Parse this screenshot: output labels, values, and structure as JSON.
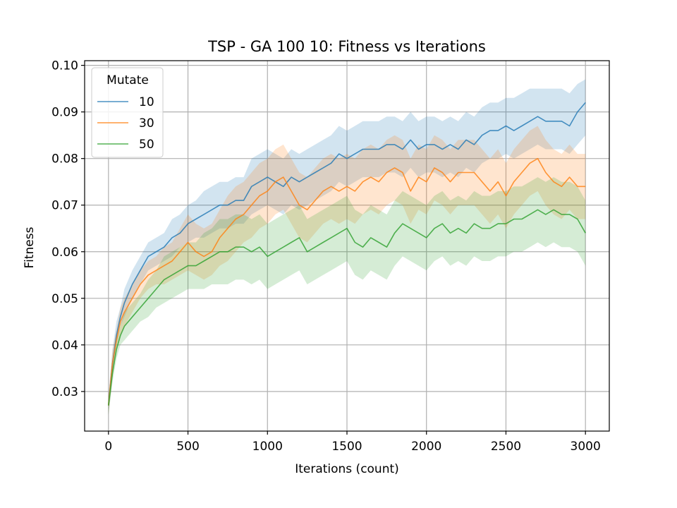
{
  "chart_data": {
    "type": "line",
    "title": "TSP - GA 100 10: Fitness vs Iterations",
    "xlabel": "Iterations (count)",
    "ylabel": "Fitness",
    "xlim": [
      -150,
      3150
    ],
    "ylim": [
      0.0215,
      0.101
    ],
    "xticks": [
      0,
      500,
      1000,
      1500,
      2000,
      2500,
      3000
    ],
    "yticks": [
      0.03,
      0.04,
      0.05,
      0.06,
      0.07,
      0.08,
      0.09,
      0.1
    ],
    "xtick_labels": [
      "0",
      "500",
      "1000",
      "1500",
      "2000",
      "2500",
      "3000"
    ],
    "ytick_labels": [
      "0.03",
      "0.04",
      "0.05",
      "0.06",
      "0.07",
      "0.08",
      "0.09",
      "0.10"
    ],
    "grid": true,
    "legend": {
      "title": "Mutate",
      "placement": "top-left"
    },
    "x": [
      0,
      25,
      50,
      75,
      100,
      150,
      200,
      250,
      300,
      350,
      400,
      450,
      500,
      550,
      600,
      650,
      700,
      750,
      800,
      850,
      900,
      950,
      1000,
      1050,
      1100,
      1150,
      1200,
      1250,
      1300,
      1350,
      1400,
      1450,
      1500,
      1550,
      1600,
      1650,
      1700,
      1750,
      1800,
      1850,
      1900,
      1950,
      2000,
      2050,
      2100,
      2150,
      2200,
      2250,
      2300,
      2350,
      2400,
      2450,
      2500,
      2550,
      2600,
      2650,
      2700,
      2750,
      2800,
      2850,
      2900,
      2950,
      3000
    ],
    "series": [
      {
        "name": "10",
        "color": "#1f77b4",
        "values": [
          0.027,
          0.036,
          0.042,
          0.046,
          0.049,
          0.053,
          0.056,
          0.059,
          0.06,
          0.061,
          0.063,
          0.064,
          0.066,
          0.067,
          0.068,
          0.069,
          0.07,
          0.07,
          0.071,
          0.071,
          0.074,
          0.075,
          0.076,
          0.075,
          0.074,
          0.076,
          0.075,
          0.076,
          0.077,
          0.078,
          0.079,
          0.081,
          0.08,
          0.081,
          0.082,
          0.082,
          0.082,
          0.083,
          0.083,
          0.082,
          0.084,
          0.082,
          0.083,
          0.083,
          0.082,
          0.083,
          0.082,
          0.084,
          0.083,
          0.085,
          0.086,
          0.086,
          0.087,
          0.086,
          0.087,
          0.088,
          0.089,
          0.088,
          0.088,
          0.088,
          0.087,
          0.09,
          0.092
        ],
        "lower": [
          0.025,
          0.033,
          0.04,
          0.044,
          0.046,
          0.05,
          0.053,
          0.056,
          0.057,
          0.058,
          0.059,
          0.061,
          0.062,
          0.063,
          0.063,
          0.064,
          0.065,
          0.065,
          0.066,
          0.066,
          0.068,
          0.069,
          0.07,
          0.069,
          0.068,
          0.07,
          0.069,
          0.07,
          0.071,
          0.072,
          0.073,
          0.075,
          0.074,
          0.075,
          0.076,
          0.076,
          0.076,
          0.077,
          0.077,
          0.076,
          0.078,
          0.076,
          0.077,
          0.077,
          0.076,
          0.077,
          0.076,
          0.078,
          0.077,
          0.079,
          0.08,
          0.08,
          0.081,
          0.08,
          0.081,
          0.082,
          0.083,
          0.082,
          0.082,
          0.082,
          0.081,
          0.083,
          0.085
        ],
        "upper": [
          0.029,
          0.039,
          0.045,
          0.048,
          0.052,
          0.056,
          0.059,
          0.062,
          0.063,
          0.064,
          0.067,
          0.068,
          0.07,
          0.071,
          0.073,
          0.074,
          0.075,
          0.075,
          0.076,
          0.076,
          0.08,
          0.081,
          0.082,
          0.081,
          0.08,
          0.082,
          0.081,
          0.082,
          0.083,
          0.084,
          0.085,
          0.087,
          0.086,
          0.087,
          0.088,
          0.088,
          0.088,
          0.089,
          0.089,
          0.088,
          0.09,
          0.088,
          0.089,
          0.089,
          0.088,
          0.089,
          0.088,
          0.09,
          0.089,
          0.091,
          0.092,
          0.092,
          0.093,
          0.093,
          0.094,
          0.095,
          0.095,
          0.095,
          0.095,
          0.095,
          0.094,
          0.096,
          0.097
        ]
      },
      {
        "name": "30",
        "color": "#ff7f0e",
        "values": [
          0.027,
          0.036,
          0.041,
          0.045,
          0.047,
          0.05,
          0.053,
          0.055,
          0.056,
          0.057,
          0.058,
          0.06,
          0.062,
          0.06,
          0.059,
          0.06,
          0.063,
          0.065,
          0.067,
          0.068,
          0.07,
          0.072,
          0.073,
          0.075,
          0.076,
          0.073,
          0.07,
          0.069,
          0.071,
          0.073,
          0.074,
          0.073,
          0.074,
          0.073,
          0.075,
          0.076,
          0.075,
          0.077,
          0.078,
          0.077,
          0.073,
          0.076,
          0.075,
          0.078,
          0.077,
          0.075,
          0.077,
          0.077,
          0.077,
          0.075,
          0.073,
          0.075,
          0.072,
          0.075,
          0.077,
          0.079,
          0.08,
          0.077,
          0.075,
          0.074,
          0.076,
          0.074,
          0.074
        ],
        "lower": [
          0.025,
          0.033,
          0.039,
          0.042,
          0.044,
          0.047,
          0.05,
          0.052,
          0.053,
          0.053,
          0.054,
          0.055,
          0.056,
          0.055,
          0.054,
          0.055,
          0.057,
          0.058,
          0.06,
          0.062,
          0.063,
          0.065,
          0.066,
          0.068,
          0.069,
          0.066,
          0.063,
          0.062,
          0.064,
          0.066,
          0.067,
          0.066,
          0.067,
          0.066,
          0.068,
          0.069,
          0.068,
          0.07,
          0.071,
          0.07,
          0.066,
          0.069,
          0.068,
          0.071,
          0.07,
          0.068,
          0.07,
          0.07,
          0.07,
          0.068,
          0.066,
          0.068,
          0.065,
          0.068,
          0.07,
          0.072,
          0.073,
          0.07,
          0.068,
          0.067,
          0.069,
          0.067,
          0.067
        ],
        "upper": [
          0.029,
          0.039,
          0.043,
          0.048,
          0.05,
          0.053,
          0.056,
          0.058,
          0.059,
          0.061,
          0.062,
          0.065,
          0.068,
          0.066,
          0.065,
          0.066,
          0.069,
          0.072,
          0.074,
          0.075,
          0.077,
          0.079,
          0.08,
          0.082,
          0.083,
          0.08,
          0.077,
          0.076,
          0.078,
          0.08,
          0.081,
          0.08,
          0.081,
          0.08,
          0.082,
          0.083,
          0.082,
          0.084,
          0.085,
          0.084,
          0.08,
          0.083,
          0.082,
          0.085,
          0.084,
          0.082,
          0.084,
          0.084,
          0.084,
          0.082,
          0.08,
          0.082,
          0.079,
          0.082,
          0.084,
          0.086,
          0.087,
          0.084,
          0.082,
          0.081,
          0.083,
          0.081,
          0.081
        ]
      },
      {
        "name": "50",
        "color": "#2ca02c",
        "values": [
          0.027,
          0.034,
          0.039,
          0.042,
          0.044,
          0.046,
          0.048,
          0.05,
          0.052,
          0.054,
          0.055,
          0.056,
          0.057,
          0.057,
          0.058,
          0.059,
          0.06,
          0.06,
          0.061,
          0.061,
          0.06,
          0.061,
          0.059,
          0.06,
          0.061,
          0.062,
          0.063,
          0.06,
          0.061,
          0.062,
          0.063,
          0.064,
          0.065,
          0.062,
          0.061,
          0.063,
          0.062,
          0.061,
          0.064,
          0.066,
          0.065,
          0.064,
          0.063,
          0.065,
          0.066,
          0.064,
          0.065,
          0.064,
          0.066,
          0.065,
          0.065,
          0.066,
          0.066,
          0.067,
          0.067,
          0.068,
          0.069,
          0.068,
          0.069,
          0.068,
          0.068,
          0.067,
          0.064
        ],
        "lower": [
          0.025,
          0.032,
          0.037,
          0.04,
          0.041,
          0.043,
          0.045,
          0.046,
          0.048,
          0.049,
          0.05,
          0.051,
          0.052,
          0.052,
          0.052,
          0.053,
          0.053,
          0.053,
          0.054,
          0.054,
          0.053,
          0.054,
          0.052,
          0.053,
          0.054,
          0.055,
          0.056,
          0.053,
          0.054,
          0.055,
          0.056,
          0.057,
          0.058,
          0.055,
          0.054,
          0.056,
          0.055,
          0.054,
          0.057,
          0.059,
          0.058,
          0.057,
          0.056,
          0.058,
          0.059,
          0.057,
          0.058,
          0.057,
          0.059,
          0.058,
          0.058,
          0.059,
          0.059,
          0.06,
          0.06,
          0.061,
          0.062,
          0.061,
          0.062,
          0.061,
          0.061,
          0.06,
          0.057
        ],
        "upper": [
          0.029,
          0.036,
          0.041,
          0.044,
          0.047,
          0.049,
          0.051,
          0.054,
          0.056,
          0.059,
          0.06,
          0.061,
          0.062,
          0.062,
          0.064,
          0.065,
          0.067,
          0.067,
          0.068,
          0.068,
          0.067,
          0.068,
          0.066,
          0.067,
          0.068,
          0.069,
          0.07,
          0.067,
          0.068,
          0.069,
          0.07,
          0.071,
          0.072,
          0.069,
          0.068,
          0.07,
          0.069,
          0.068,
          0.071,
          0.073,
          0.072,
          0.071,
          0.07,
          0.072,
          0.073,
          0.071,
          0.072,
          0.071,
          0.073,
          0.072,
          0.072,
          0.073,
          0.073,
          0.074,
          0.074,
          0.075,
          0.076,
          0.075,
          0.076,
          0.075,
          0.075,
          0.074,
          0.071
        ]
      }
    ]
  }
}
